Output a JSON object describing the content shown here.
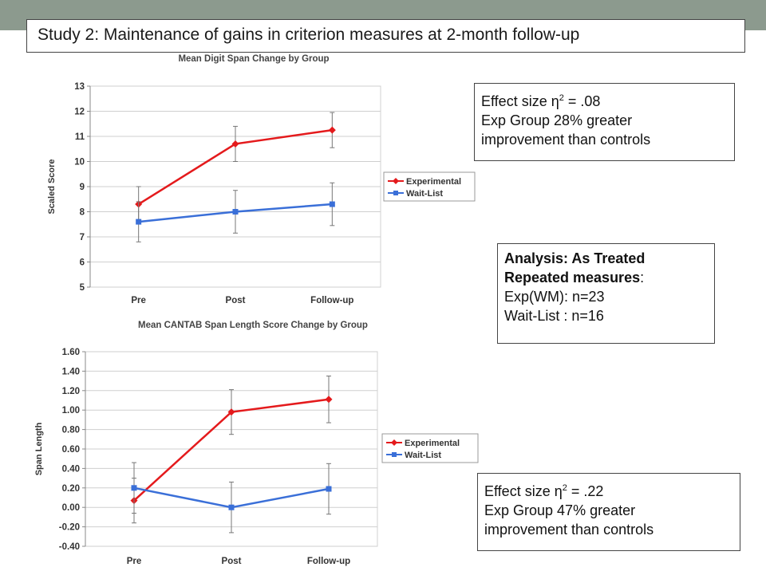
{
  "slide": {
    "title": "Study 2: Maintenance of gains in criterion measures at 2-month follow-up"
  },
  "boxes": {
    "effect1": {
      "label": "Effect size η",
      "sup": "2",
      "value": " = .08",
      "line2": "Exp Group  28% greater",
      "line3": "improvement than controls"
    },
    "analysis": {
      "line1": "Analysis: As Treated",
      "line2_bold": "Repeated measures",
      "line2_rest": ":",
      "line3": "Exp(WM): n=23",
      "line4": "Wait-List : n=16"
    },
    "effect2": {
      "label": "Effect size η",
      "sup": "2",
      "value": " = .22",
      "line2": "Exp Group  47% greater",
      "line3": "improvement than controls"
    }
  },
  "chart_data": [
    {
      "type": "line",
      "title": "Mean Digit Span Change by Group",
      "xlabel": "",
      "ylabel": "Scaled Score",
      "categories": [
        "Pre",
        "Post",
        "Follow-up"
      ],
      "ylim": [
        5,
        13
      ],
      "yticks": [
        "5",
        "6",
        "7",
        "8",
        "9",
        "10",
        "11",
        "12",
        "13"
      ],
      "legend_position": "right",
      "series": [
        {
          "name": "Experimental",
          "color": "#e41a1c",
          "marker": "diamond",
          "values": [
            8.3,
            10.7,
            11.25
          ],
          "err": [
            0.7,
            0.7,
            0.7
          ]
        },
        {
          "name": "Wait-List",
          "color": "#3a6fd8",
          "marker": "square",
          "values": [
            7.6,
            8.0,
            8.3
          ],
          "err": [
            0.8,
            0.85,
            0.85
          ]
        }
      ]
    },
    {
      "type": "line",
      "title": "Mean CANTAB Span Length Score Change by Group",
      "xlabel": "",
      "ylabel": "Span Length",
      "categories": [
        "Pre",
        "Post",
        "Follow-up"
      ],
      "ylim": [
        -0.4,
        1.6
      ],
      "yticks": [
        "-0.40",
        "-0.20",
        "0.00",
        "0.20",
        "0.40",
        "0.60",
        "0.80",
        "1.00",
        "1.20",
        "1.40",
        "1.60"
      ],
      "legend_position": "right",
      "series": [
        {
          "name": "Experimental",
          "color": "#e41a1c",
          "marker": "diamond",
          "values": [
            0.07,
            0.98,
            1.11
          ],
          "err": [
            0.23,
            0.23,
            0.24
          ]
        },
        {
          "name": "Wait-List",
          "color": "#3a6fd8",
          "marker": "square",
          "values": [
            0.2,
            0.0,
            0.19
          ],
          "err": [
            0.26,
            0.26,
            0.26
          ]
        }
      ]
    }
  ]
}
